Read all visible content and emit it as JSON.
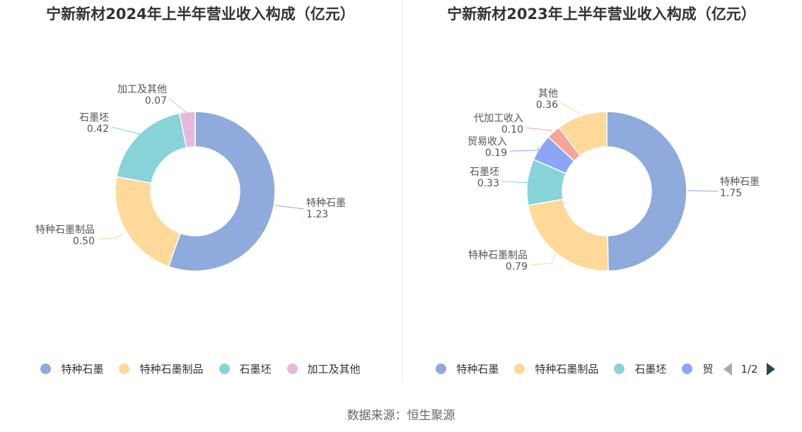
{
  "chart_data": [
    {
      "type": "pie",
      "title": "宁新新材2024年上半年营业收入构成（亿元）",
      "categories": [
        "特种石墨",
        "特种石墨制品",
        "石墨坯",
        "加工及其他"
      ],
      "values": [
        1.23,
        0.5,
        0.42,
        0.07
      ],
      "value_labels": [
        "1.23",
        "0.50",
        "0.42",
        "0.07"
      ],
      "colors": [
        "#8faadc",
        "#ffd99a",
        "#86d3d8",
        "#e6b8db"
      ],
      "legend_placement": "bottom"
    },
    {
      "type": "pie",
      "title": "宁新新材2023年上半年营业收入构成（亿元）",
      "categories": [
        "特种石墨",
        "特种石墨制品",
        "石墨坯",
        "贸易收入",
        "代加工收入",
        "其他"
      ],
      "values": [
        1.75,
        0.79,
        0.33,
        0.19,
        0.1,
        0.36
      ],
      "value_labels": [
        "1.75",
        "0.79",
        "0.33",
        "0.19",
        "0.10",
        "0.36"
      ],
      "colors": [
        "#8faadc",
        "#ffd99a",
        "#86d3d8",
        "#8aa6f5",
        "#f6a49c",
        "#ffd99a"
      ],
      "legend_placement": "bottom",
      "legend_visible": [
        "特种石墨",
        "特种石墨制品",
        "石墨坯",
        "贸"
      ],
      "legend_page": "1/2"
    }
  ],
  "source": "数据来源：恒生聚源"
}
